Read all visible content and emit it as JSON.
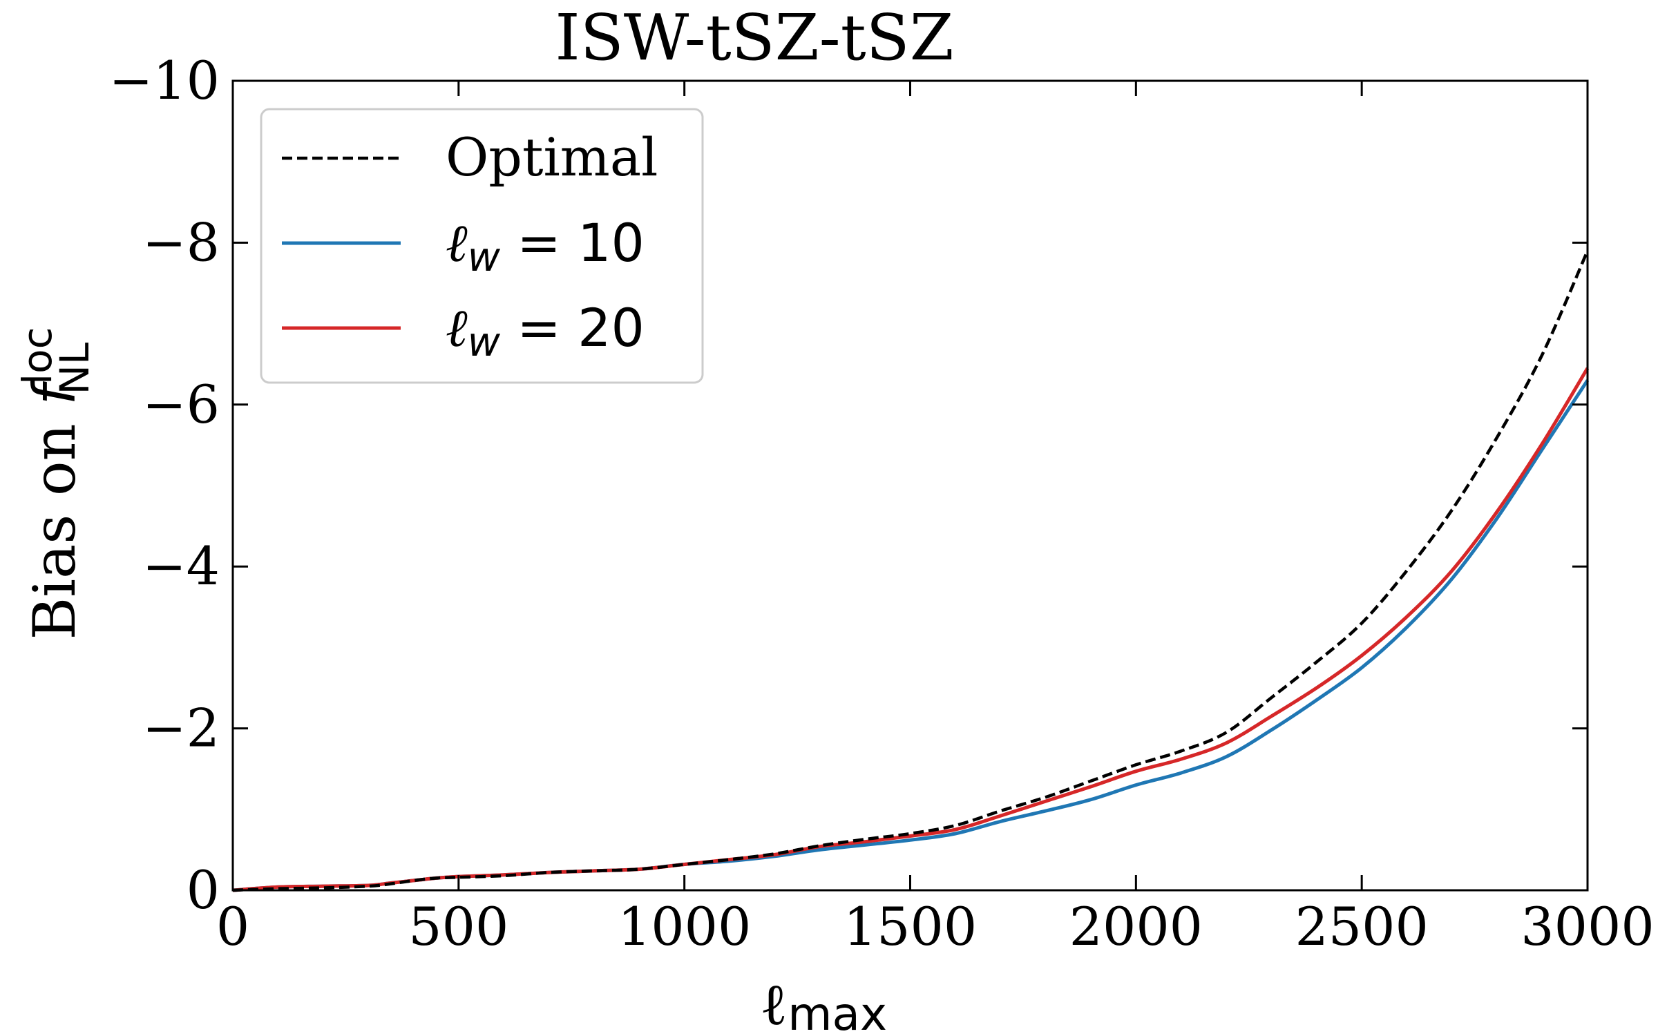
{
  "chart_data": {
    "type": "line",
    "title": "ISW-tSZ-tSZ",
    "xlabel": {
      "base": "ℓ",
      "sub": "max"
    },
    "ylabel": {
      "text": "Bias on ",
      "sym": "f",
      "sup": "loc",
      "sub": "NL"
    },
    "xlim": [
      0,
      3000
    ],
    "ylim": [
      0,
      -10
    ],
    "y_inverted": true,
    "grid": false,
    "legend_position": "top-left",
    "xticks": [
      0,
      500,
      1000,
      1500,
      2000,
      2500,
      3000
    ],
    "xtick_labels": [
      "0",
      "500",
      "1000",
      "1500",
      "2000",
      "2500",
      "3000"
    ],
    "yticks": [
      0,
      -2,
      -4,
      -6,
      -8,
      -10
    ],
    "ytick_labels": [
      "0",
      "−2",
      "−4",
      "−6",
      "−8",
      "−10"
    ],
    "x": [
      0,
      100,
      200,
      300,
      350,
      400,
      450,
      500,
      600,
      700,
      800,
      900,
      1000,
      1100,
      1200,
      1300,
      1400,
      1500,
      1600,
      1700,
      1800,
      1900,
      2000,
      2100,
      2200,
      2300,
      2400,
      2500,
      2600,
      2700,
      2800,
      2900,
      3000
    ],
    "series": [
      {
        "name": "Optimal",
        "color": "#000000",
        "dash": true,
        "values": [
          0,
          -0.02,
          -0.03,
          -0.05,
          -0.08,
          -0.12,
          -0.15,
          -0.16,
          -0.18,
          -0.22,
          -0.24,
          -0.26,
          -0.32,
          -0.38,
          -0.45,
          -0.55,
          -0.63,
          -0.7,
          -0.8,
          -0.98,
          -1.15,
          -1.35,
          -1.55,
          -1.72,
          -1.95,
          -2.38,
          -2.82,
          -3.3,
          -3.95,
          -4.7,
          -5.6,
          -6.62,
          -7.9
        ]
      },
      {
        "name": "ℓw = 10",
        "label_base": "ℓ",
        "label_sub": "w",
        "label_rest": " = 10",
        "color": "#1f77b4",
        "dash": false,
        "values": [
          0,
          -0.04,
          -0.05,
          -0.06,
          -0.09,
          -0.12,
          -0.15,
          -0.17,
          -0.19,
          -0.22,
          -0.24,
          -0.26,
          -0.32,
          -0.36,
          -0.42,
          -0.5,
          -0.56,
          -0.62,
          -0.7,
          -0.85,
          -0.98,
          -1.12,
          -1.3,
          -1.45,
          -1.65,
          -1.98,
          -2.35,
          -2.75,
          -3.25,
          -3.85,
          -4.6,
          -5.45,
          -6.3
        ]
      },
      {
        "name": "ℓw = 20",
        "label_base": "ℓ",
        "label_sub": "w",
        "label_rest": " = 20",
        "color": "#d62728",
        "dash": false,
        "values": [
          0,
          -0.04,
          -0.05,
          -0.06,
          -0.09,
          -0.12,
          -0.15,
          -0.17,
          -0.19,
          -0.22,
          -0.24,
          -0.26,
          -0.32,
          -0.38,
          -0.44,
          -0.54,
          -0.6,
          -0.67,
          -0.75,
          -0.92,
          -1.1,
          -1.28,
          -1.47,
          -1.62,
          -1.82,
          -2.15,
          -2.5,
          -2.9,
          -3.38,
          -3.95,
          -4.68,
          -5.52,
          -6.45
        ]
      }
    ]
  }
}
